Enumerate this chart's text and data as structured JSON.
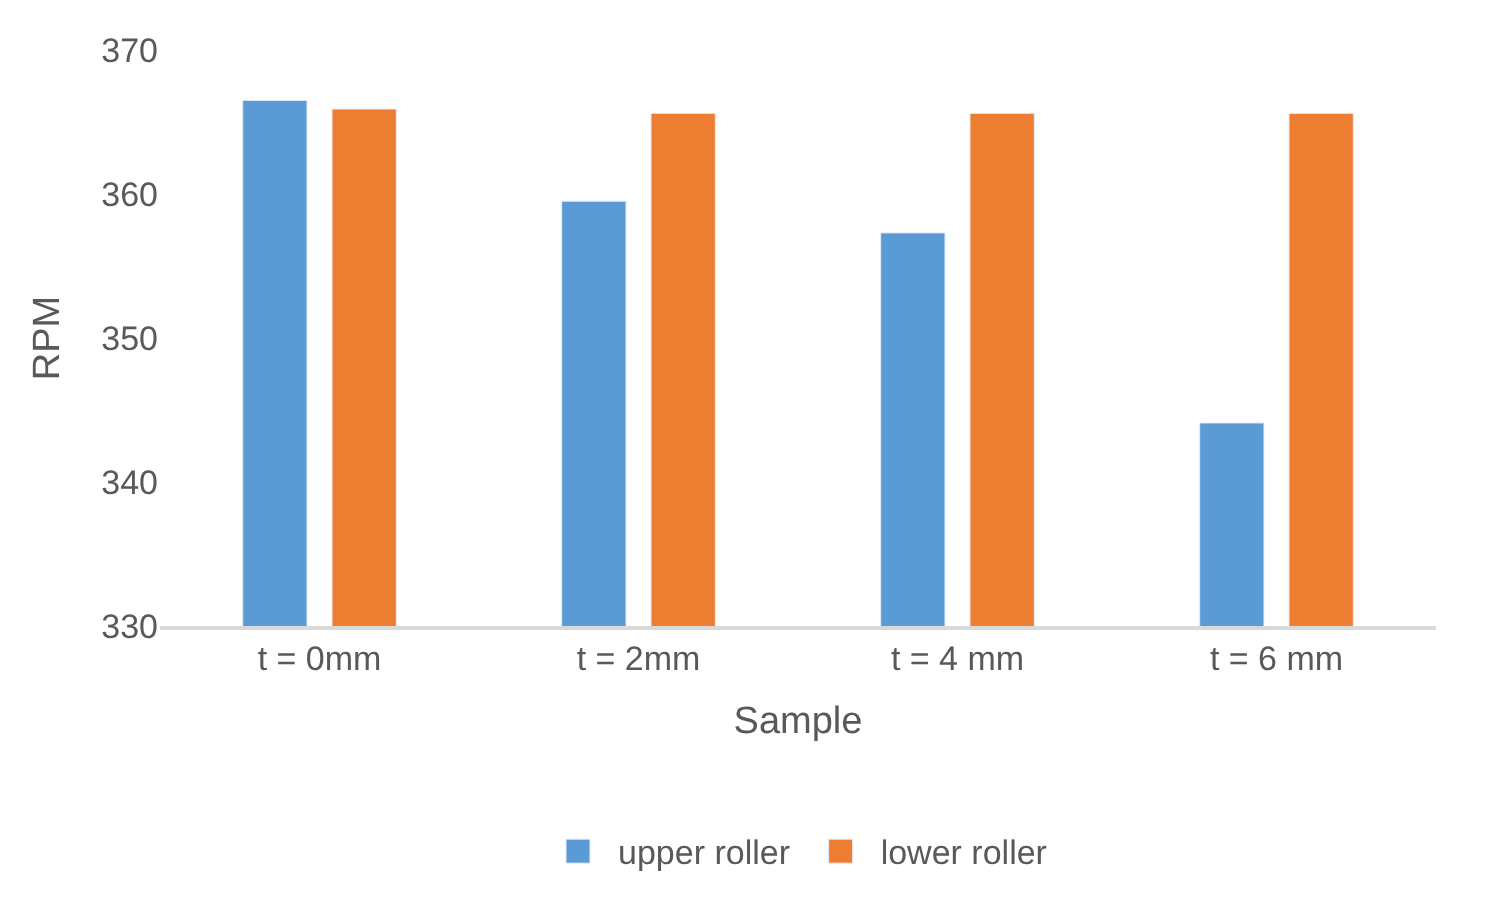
{
  "chart_data": {
    "type": "bar",
    "xlabel": "Sample",
    "ylabel": "RPM",
    "categories": [
      "t = 0mm",
      "t = 2mm",
      "t = 4 mm",
      "t = 6 mm"
    ],
    "series": [
      {
        "name": "upper roller",
        "color": "#5b9bd5",
        "values": [
          366.5,
          359.5,
          357.3,
          344.1
        ]
      },
      {
        "name": "lower roller",
        "color": "#ed7d31",
        "values": [
          365.9,
          365.6,
          365.6,
          365.6
        ]
      }
    ],
    "ylim": [
      330,
      370
    ],
    "yticks": [
      330,
      340,
      350,
      360,
      370
    ],
    "grid": false,
    "legend": "bottom"
  }
}
